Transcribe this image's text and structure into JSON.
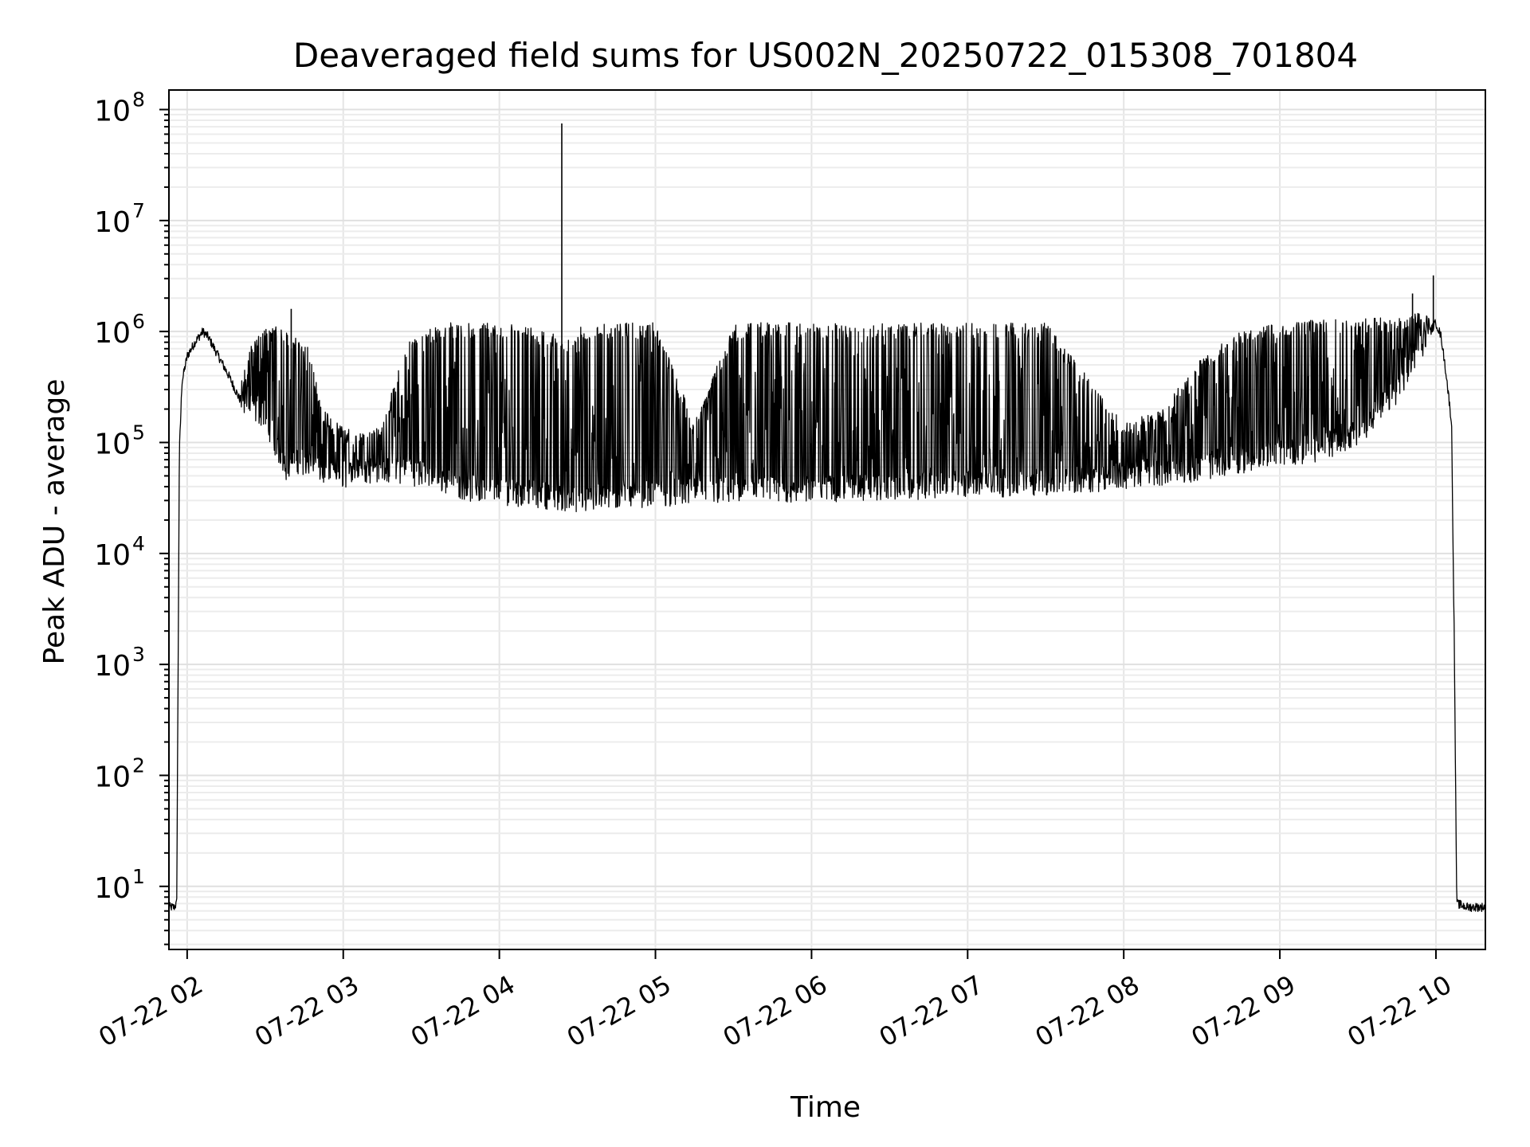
{
  "chart_data": {
    "type": "line",
    "title": "Deaveraged field sums for US002N_20250722_015308_701804",
    "xlabel": "Time",
    "ylabel": "Peak ADU - average",
    "yscale": "log",
    "grid": true,
    "legend": "none",
    "line_color": "#000000",
    "xlim": [
      "2025-07-22 01:53",
      "2025-07-22 10:19"
    ],
    "ylim": [
      2.7,
      150000000
    ],
    "x_ticks": [
      {
        "label": "07-22 02",
        "time": "2025-07-22 02:00"
      },
      {
        "label": "07-22 03",
        "time": "2025-07-22 03:00"
      },
      {
        "label": "07-22 04",
        "time": "2025-07-22 04:00"
      },
      {
        "label": "07-22 05",
        "time": "2025-07-22 05:00"
      },
      {
        "label": "07-22 06",
        "time": "2025-07-22 06:00"
      },
      {
        "label": "07-22 07",
        "time": "2025-07-22 07:00"
      },
      {
        "label": "07-22 08",
        "time": "2025-07-22 08:00"
      },
      {
        "label": "07-22 09",
        "time": "2025-07-22 09:00"
      },
      {
        "label": "07-22 10",
        "time": "2025-07-22 10:00"
      }
    ],
    "y_ticks": [
      {
        "base": "10",
        "exp": "1",
        "value": 10
      },
      {
        "base": "10",
        "exp": "2",
        "value": 100
      },
      {
        "base": "10",
        "exp": "3",
        "value": 1000
      },
      {
        "base": "10",
        "exp": "4",
        "value": 10000
      },
      {
        "base": "10",
        "exp": "5",
        "value": 100000
      },
      {
        "base": "10",
        "exp": "6",
        "value": 1000000
      },
      {
        "base": "10",
        "exp": "7",
        "value": 10000000
      },
      {
        "base": "10",
        "exp": "8",
        "value": 100000000
      }
    ],
    "series": [
      {
        "x": [
          "2025-07-22 01:53",
          "2025-07-22 01:55",
          "2025-07-22 01:56",
          "2025-07-22 01:57",
          "2025-07-22 01:58",
          "2025-07-22 02:00",
          "2025-07-22 02:03",
          "2025-07-22 02:06",
          "2025-07-22 02:08",
          "2025-07-22 02:12",
          "2025-07-22 02:16",
          "2025-07-22 02:20",
          "2025-07-22 02:25",
          "2025-07-22 02:30",
          "2025-07-22 02:33",
          "2025-07-22 02:38",
          "2025-07-22 02:42",
          "2025-07-22 02:47",
          "2025-07-22 02:52",
          "2025-07-22 02:58",
          "2025-07-22 03:05",
          "2025-07-22 03:15",
          "2025-07-22 03:25",
          "2025-07-22 03:35",
          "2025-07-22 03:40",
          "2025-07-22 03:50",
          "2025-07-22 04:00",
          "2025-07-22 04:10",
          "2025-07-22 04:20",
          "2025-07-22 04:24",
          "2025-07-22 04:30",
          "2025-07-22 04:40",
          "2025-07-22 04:50",
          "2025-07-22 05:00",
          "2025-07-22 05:15",
          "2025-07-22 05:30",
          "2025-07-22 05:45",
          "2025-07-22 06:00",
          "2025-07-22 06:30",
          "2025-07-22 07:00",
          "2025-07-22 07:30",
          "2025-07-22 08:00",
          "2025-07-22 08:15",
          "2025-07-22 08:30",
          "2025-07-22 08:45",
          "2025-07-22 09:00",
          "2025-07-22 09:15",
          "2025-07-22 09:30",
          "2025-07-22 09:45",
          "2025-07-22 09:55",
          "2025-07-22 10:00",
          "2025-07-22 10:02",
          "2025-07-22 10:04",
          "2025-07-22 10:06",
          "2025-07-22 10:07",
          "2025-07-22 10:08",
          "2025-07-22 10:12",
          "2025-07-22 10:19"
        ],
        "y": [
          6.5,
          6.5,
          7,
          80000,
          350000,
          600000,
          800000,
          1000000,
          900000,
          600000,
          400000,
          250000,
          200000,
          180000,
          110000,
          60000,
          70000,
          65000,
          55000,
          50000,
          55000,
          58000,
          55000,
          50000,
          45000,
          38000,
          36000,
          35000,
          33000,
          32000,
          30000,
          32000,
          34000,
          35000,
          36000,
          37000,
          37000,
          38000,
          40000,
          42000,
          44000,
          50000,
          55000,
          60000,
          70000,
          80000,
          90000,
          120000,
          300000,
          800000,
          1200000,
          900000,
          400000,
          150000,
          2000,
          7,
          6.5,
          6.5
        ],
        "upper_envelope": [
          6.5,
          6.5,
          7,
          80000,
          350000,
          600000,
          800000,
          1000000,
          900000,
          600000,
          400000,
          300000,
          800000,
          1200000,
          1200000,
          1000000,
          900000,
          700000,
          200000,
          150000,
          120000,
          150000,
          900000,
          1100000,
          1200000,
          1200000,
          1200000,
          1100000,
          1000000,
          900000,
          1100000,
          1200000,
          1200000,
          1200000,
          150000,
          1200000,
          1200000,
          1200000,
          1200000,
          1200000,
          1200000,
          150000,
          200000,
          600000,
          1000000,
          1200000,
          1300000,
          1300000,
          1400000,
          1500000,
          1300000,
          900000,
          400000,
          150000,
          2000,
          7,
          6.5,
          6.5
        ],
        "spikes": [
          {
            "time": "2025-07-22 04:24",
            "value": 75000000
          },
          {
            "time": "2025-07-22 09:59",
            "value": 3200000
          },
          {
            "time": "2025-07-22 09:51",
            "value": 2200000
          },
          {
            "time": "2025-07-22 02:40",
            "value": 1600000
          }
        ]
      }
    ]
  }
}
